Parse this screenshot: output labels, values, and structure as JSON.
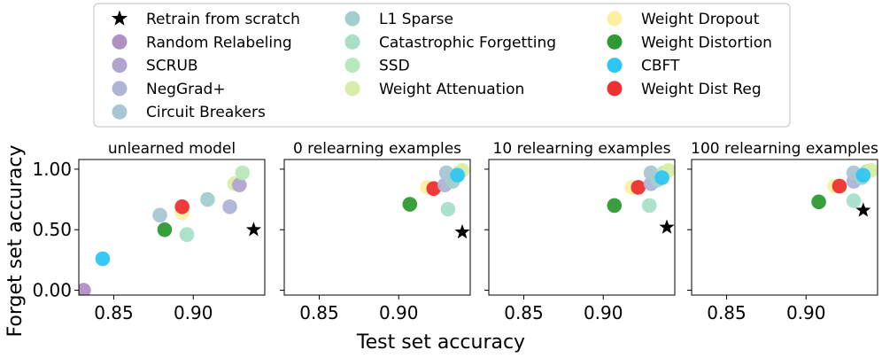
{
  "figure": {
    "ylabel": "Forget set accuracy",
    "xlabel": "Test set accuracy"
  },
  "legend": {
    "items": [
      {
        "name": "Retrain from scratch",
        "color": "#000000",
        "marker": "star"
      },
      {
        "name": "Random Relabeling",
        "color": "#b08fc2",
        "marker": "circle"
      },
      {
        "name": "SCRUB",
        "color": "#b3a3d1",
        "marker": "circle"
      },
      {
        "name": "NegGrad+",
        "color": "#aeb4d6",
        "marker": "circle"
      },
      {
        "name": "Circuit Breakers",
        "color": "#a9c6d3",
        "marker": "circle"
      },
      {
        "name": "L1 Sparse",
        "color": "#a2cfcb",
        "marker": "circle"
      },
      {
        "name": "Catastrophic Forgetting",
        "color": "#a8dfc8",
        "marker": "circle"
      },
      {
        "name": "SSD",
        "color": "#b8e8bb",
        "marker": "circle"
      },
      {
        "name": "Weight Attenuation",
        "color": "#d8eea8",
        "marker": "circle"
      },
      {
        "name": "Weight Dropout",
        "color": "#fbf0a2",
        "marker": "circle"
      },
      {
        "name": "Weight Distortion",
        "color": "#2e9a33",
        "marker": "circle"
      },
      {
        "name": "CBFT",
        "color": "#2ec6f6",
        "marker": "circle"
      },
      {
        "name": "Weight Dist Reg",
        "color": "#ee3030",
        "marker": "circle"
      }
    ]
  },
  "chart_data": [
    {
      "type": "scatter",
      "title": "unlearned model",
      "xlim": [
        0.828,
        0.945
      ],
      "ylim": [
        -0.04,
        1.08
      ],
      "xticks": [
        "0.85",
        "0.90"
      ],
      "xtick_values": [
        0.85,
        0.9
      ],
      "yticks": [
        "0.00",
        "0.50",
        "1.00"
      ],
      "ytick_values": [
        0.0,
        0.5,
        1.0
      ],
      "points": [
        {
          "series": "Random Relabeling",
          "x": 0.831,
          "y": 0.0
        },
        {
          "series": "CBFT",
          "x": 0.843,
          "y": 0.26
        },
        {
          "series": "Circuit Breakers",
          "x": 0.879,
          "y": 0.62
        },
        {
          "series": "Weight Distortion",
          "x": 0.882,
          "y": 0.5
        },
        {
          "series": "Catastrophic Forgetting",
          "x": 0.896,
          "y": 0.46
        },
        {
          "series": "Weight Dropout",
          "x": 0.893,
          "y": 0.64
        },
        {
          "series": "Weight Dist Reg",
          "x": 0.893,
          "y": 0.69
        },
        {
          "series": "L1 Sparse",
          "x": 0.909,
          "y": 0.75
        },
        {
          "series": "NegGrad+",
          "x": 0.923,
          "y": 0.69
        },
        {
          "series": "Weight Attenuation",
          "x": 0.926,
          "y": 0.88
        },
        {
          "series": "SCRUB",
          "x": 0.929,
          "y": 0.87
        },
        {
          "series": "SSD",
          "x": 0.931,
          "y": 0.97
        },
        {
          "series": "Retrain from scratch",
          "x": 0.938,
          "y": 0.5
        }
      ]
    },
    {
      "type": "scatter",
      "title": "0 relearning examples",
      "xlim": [
        0.828,
        0.945
      ],
      "ylim": [
        -0.04,
        1.08
      ],
      "xticks": [
        "0.85",
        "0.90"
      ],
      "xtick_values": [
        0.85,
        0.9
      ],
      "points": [
        {
          "series": "Weight Distortion",
          "x": 0.907,
          "y": 0.71
        },
        {
          "series": "Weight Dropout",
          "x": 0.918,
          "y": 0.85
        },
        {
          "series": "Weight Dist Reg",
          "x": 0.922,
          "y": 0.84
        },
        {
          "series": "Catastrophic Forgetting",
          "x": 0.931,
          "y": 0.67
        },
        {
          "series": "NegGrad+",
          "x": 0.929,
          "y": 0.87
        },
        {
          "series": "Circuit Breakers",
          "x": 0.93,
          "y": 0.97
        },
        {
          "series": "L1 Sparse",
          "x": 0.934,
          "y": 0.9
        },
        {
          "series": "SSD",
          "x": 0.938,
          "y": 0.97
        },
        {
          "series": "Weight Attenuation",
          "x": 0.94,
          "y": 0.99
        },
        {
          "series": "CBFT",
          "x": 0.937,
          "y": 0.95
        },
        {
          "series": "Retrain from scratch",
          "x": 0.94,
          "y": 0.48
        }
      ]
    },
    {
      "type": "scatter",
      "title": "10 relearning examples",
      "xlim": [
        0.828,
        0.945
      ],
      "ylim": [
        -0.04,
        1.08
      ],
      "xticks": [
        "0.85",
        "0.90"
      ],
      "xtick_values": [
        0.85,
        0.9
      ],
      "points": [
        {
          "series": "Weight Distortion",
          "x": 0.907,
          "y": 0.7
        },
        {
          "series": "Weight Dropout",
          "x": 0.918,
          "y": 0.85
        },
        {
          "series": "Weight Dist Reg",
          "x": 0.922,
          "y": 0.85
        },
        {
          "series": "Catastrophic Forgetting",
          "x": 0.929,
          "y": 0.7
        },
        {
          "series": "NegGrad+",
          "x": 0.93,
          "y": 0.88
        },
        {
          "series": "Circuit Breakers",
          "x": 0.93,
          "y": 0.97
        },
        {
          "series": "L1 Sparse",
          "x": 0.934,
          "y": 0.91
        },
        {
          "series": "SSD",
          "x": 0.938,
          "y": 0.97
        },
        {
          "series": "Weight Attenuation",
          "x": 0.941,
          "y": 0.99
        },
        {
          "series": "CBFT",
          "x": 0.937,
          "y": 0.93
        },
        {
          "series": "Retrain from scratch",
          "x": 0.94,
          "y": 0.52
        }
      ]
    },
    {
      "type": "scatter",
      "title": "100 relearning examples",
      "xlim": [
        0.828,
        0.945
      ],
      "ylim": [
        -0.04,
        1.08
      ],
      "xticks": [
        "0.85",
        "0.90"
      ],
      "xtick_values": [
        0.85,
        0.9
      ],
      "points": [
        {
          "series": "Weight Distortion",
          "x": 0.908,
          "y": 0.73
        },
        {
          "series": "Weight Dropout",
          "x": 0.918,
          "y": 0.86
        },
        {
          "series": "Weight Dist Reg",
          "x": 0.921,
          "y": 0.86
        },
        {
          "series": "Catastrophic Forgetting",
          "x": 0.93,
          "y": 0.74
        },
        {
          "series": "NegGrad+",
          "x": 0.93,
          "y": 0.9
        },
        {
          "series": "Circuit Breakers",
          "x": 0.93,
          "y": 0.97
        },
        {
          "series": "L1 Sparse",
          "x": 0.935,
          "y": 0.93
        },
        {
          "series": "SSD",
          "x": 0.938,
          "y": 0.98
        },
        {
          "series": "Weight Attenuation",
          "x": 0.941,
          "y": 0.99
        },
        {
          "series": "CBFT",
          "x": 0.936,
          "y": 0.95
        },
        {
          "series": "Retrain from scratch",
          "x": 0.936,
          "y": 0.66
        }
      ]
    }
  ]
}
